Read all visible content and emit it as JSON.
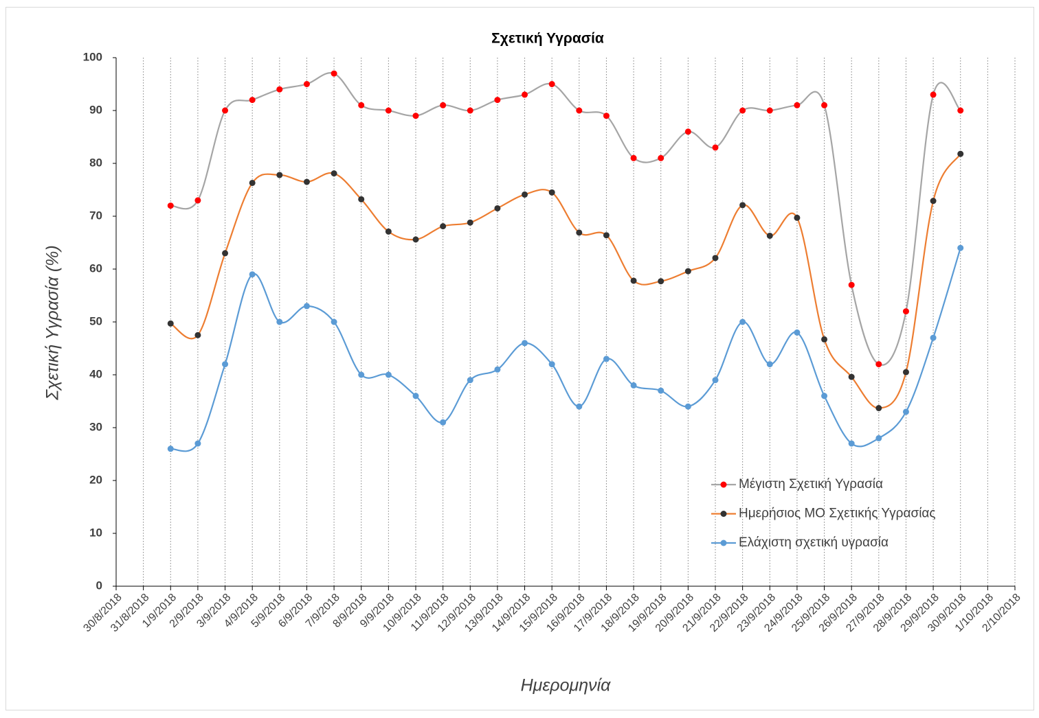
{
  "chart_data": {
    "type": "line",
    "title": "Σχετική Υγρασία",
    "x_label": "Ημερομηνία",
    "y_label": "Σχετική Υγρασία (%)",
    "categories": [
      "30/8/2018",
      "31/8/2018",
      "1/9/2018",
      "2/9/2018",
      "3/9/2018",
      "4/9/2018",
      "5/9/2018",
      "6/9/2018",
      "7/9/2018",
      "8/9/2018",
      "9/9/2018",
      "10/9/2018",
      "11/9/2018",
      "12/9/2018",
      "13/9/2018",
      "14/9/2018",
      "15/9/2018",
      "16/9/2018",
      "17/9/2018",
      "18/9/2018",
      "19/9/2018",
      "20/9/2018",
      "21/9/2018",
      "22/9/2018",
      "23/9/2018",
      "24/9/2018",
      "25/9/2018",
      "26/9/2018",
      "27/9/2018",
      "28/9/2018",
      "29/9/2018",
      "30/9/2018",
      "1/10/2018",
      "2/10/2018"
    ],
    "series": [
      {
        "name": "Μέγιστη Σχετική Υγρασία",
        "color": "#a5a5a5",
        "marker_color": "#ff0000",
        "values": [
          null,
          null,
          72,
          73,
          90,
          92,
          94,
          95,
          97,
          91,
          90,
          89,
          91,
          90,
          92,
          93,
          95,
          90,
          89,
          81,
          81,
          86,
          83,
          90,
          90,
          91,
          91,
          57,
          42,
          52,
          93,
          90,
          null,
          null
        ]
      },
      {
        "name": "Ημερήσιος ΜΟ Σχετικής Υγρασίας",
        "color": "#ed7d31",
        "marker_color": "#333333",
        "values": [
          null,
          null,
          49.7,
          47.5,
          63,
          76.3,
          77.8,
          76.5,
          78.1,
          73.2,
          67.1,
          65.6,
          68.1,
          68.8,
          71.5,
          74.1,
          74.5,
          66.9,
          66.4,
          57.8,
          57.7,
          59.6,
          62.1,
          72.1,
          66.3,
          69.7,
          46.7,
          39.6,
          33.7,
          40.5,
          72.9,
          81.8,
          null,
          null
        ]
      },
      {
        "name": "Ελάχιστη σχετική υγρασία",
        "color": "#5b9bd5",
        "marker_color": "#5b9bd5",
        "values": [
          null,
          null,
          26,
          27,
          42,
          59,
          50,
          53,
          50,
          40,
          40,
          36,
          31,
          39,
          41,
          46,
          42,
          34,
          43,
          38,
          37,
          34,
          39,
          50,
          42,
          48,
          36,
          27,
          28,
          33,
          47,
          64,
          null,
          null
        ]
      }
    ],
    "ylim": [
      0,
      100
    ],
    "yticks": [
      0,
      10,
      20,
      30,
      40,
      50,
      60,
      70,
      80,
      90,
      100
    ],
    "smooth": true,
    "x_grid": true,
    "legend": "lower-right"
  }
}
